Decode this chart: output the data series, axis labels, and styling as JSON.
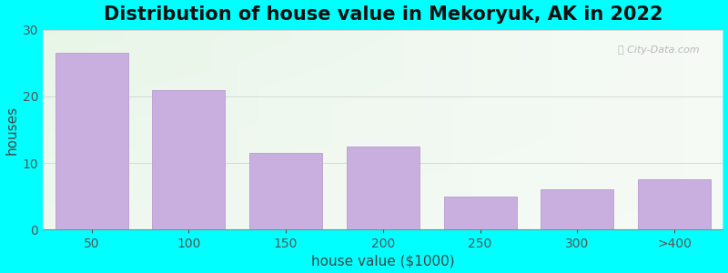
{
  "title": "Distribution of house value in Mekoryuk, AK in 2022",
  "xlabel": "house value ($1000)",
  "ylabel": "houses",
  "categories": [
    "50",
    "100",
    "150",
    "200",
    "250",
    "300",
    ">400"
  ],
  "values": [
    26.5,
    21,
    11.5,
    12.5,
    5,
    6,
    7.5
  ],
  "bar_color": "#c9aee0",
  "bar_edge_color": "#b89dce",
  "background_color": "#00ffff",
  "ylim": [
    0,
    30
  ],
  "yticks": [
    0,
    10,
    20,
    30
  ],
  "title_fontsize": 15,
  "axis_label_fontsize": 11,
  "tick_fontsize": 10
}
